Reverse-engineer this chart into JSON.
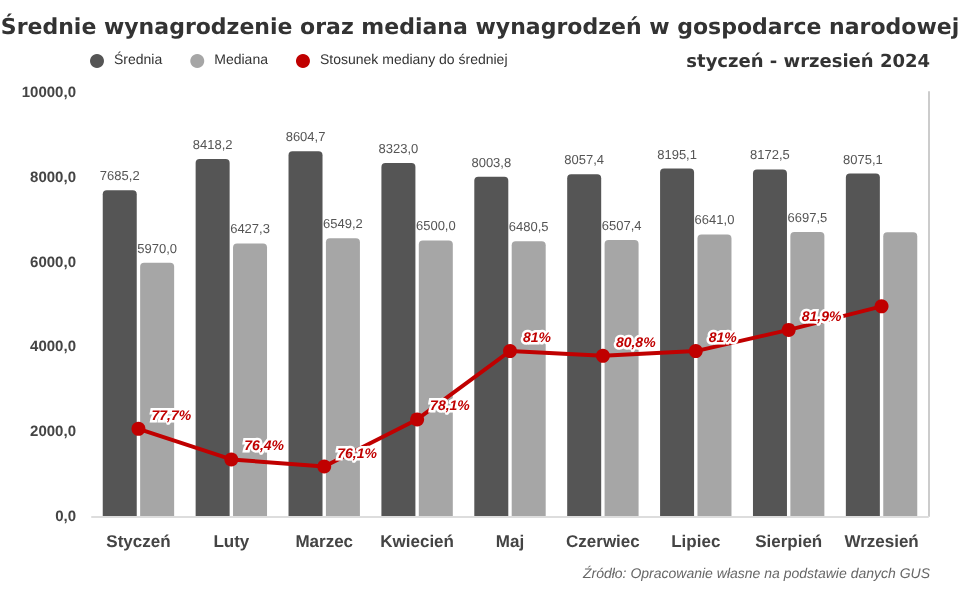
{
  "chart_data": {
    "type": "bar",
    "title": "Średnie wynagrodzenie oraz mediana wynagrodzeń w gospodarce narodowej",
    "subtitle": "styczeń - wrzesień 2024",
    "annotations": [
      "Źródło: Opracowanie własne na podstawie danych GUS"
    ],
    "categories": [
      "Styczeń",
      "Luty",
      "Marzec",
      "Kwiecień",
      "Maj",
      "Czerwiec",
      "Lipiec",
      "Sierpień",
      "Wrzesień"
    ],
    "series": [
      {
        "name": "Średnia",
        "color": "#555555",
        "values": [
          7685.2,
          8418.2,
          8604.7,
          8323.0,
          8003.8,
          8057.4,
          8195.1,
          8172.5,
          8075.1
        ],
        "value_labels": [
          "7685,2",
          "8418,2",
          "8604,7",
          "8323,0",
          "8003,8",
          "8057,4",
          "8195,1",
          "8172,5",
          "8075,1"
        ]
      },
      {
        "name": "Mediana",
        "color": "#a6a6a6",
        "values": [
          5970.0,
          6427.3,
          6549.2,
          6500.0,
          6480.5,
          6507.4,
          6641.0,
          6697.5,
          6690
        ],
        "value_labels": [
          "5970,0",
          "6427,3",
          "6549,2",
          "6500,0",
          "6480,5",
          "6507,4",
          "6641,0",
          "6697,5",
          null
        ]
      },
      {
        "type": "line",
        "axis": "y2",
        "name": "Stosunek mediany do średniej",
        "color": "#c00000",
        "values": [
          77.7,
          76.4,
          76.1,
          78.1,
          81,
          80.8,
          81,
          81.9,
          82.9
        ],
        "value_labels": [
          "77,7%",
          "76,4%",
          "76,1%",
          "78,1%",
          "81%",
          "80,8%",
          "81%",
          "81,9%",
          null
        ]
      }
    ],
    "ylim": [
      0,
      10000
    ],
    "yticks": [
      {
        "value": 0,
        "label": "0,0"
      },
      {
        "value": 2000,
        "label": "2000,0"
      },
      {
        "value": 4000,
        "label": "4000,0"
      },
      {
        "value": 6000,
        "label": "6000,0"
      },
      {
        "value": 8000,
        "label": "8000,0"
      },
      {
        "value": 10000,
        "label": "10000,0"
      }
    ],
    "y2lim": [
      74,
      92
    ],
    "grid": false,
    "legend": "top left",
    "marker": "circle",
    "line_style": "solid"
  }
}
